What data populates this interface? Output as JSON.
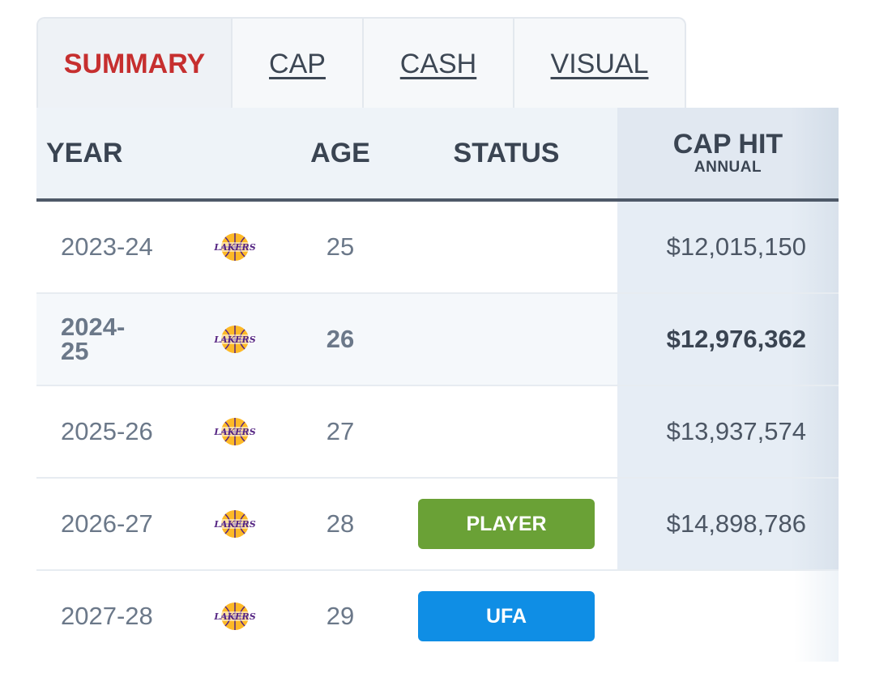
{
  "tabs": [
    {
      "label": "SUMMARY",
      "active": true
    },
    {
      "label": "CAP",
      "active": false
    },
    {
      "label": "CASH",
      "active": false
    },
    {
      "label": "VISUAL",
      "active": false
    }
  ],
  "table": {
    "headers": {
      "year": "YEAR",
      "age": "AGE",
      "status": "STATUS",
      "cap_hit": "CAP HIT",
      "cap_hit_sub": "ANNUAL"
    },
    "rows": [
      {
        "year": "2023-24",
        "team_logo": "lakers-logo",
        "age": "25",
        "status": "",
        "cap_hit": "$12,015,150"
      },
      {
        "year": "2024-25",
        "team_logo": "lakers-logo",
        "age": "26",
        "status": "",
        "cap_hit": "$12,976,362",
        "current": true
      },
      {
        "year": "2025-26",
        "team_logo": "lakers-logo",
        "age": "27",
        "status": "",
        "cap_hit": "$13,937,574"
      },
      {
        "year": "2026-27",
        "team_logo": "lakers-logo",
        "age": "28",
        "status": "PLAYER",
        "cap_hit": "$14,898,786"
      },
      {
        "year": "2027-28",
        "team_logo": "lakers-logo",
        "age": "29",
        "status": "UFA",
        "cap_hit": ""
      }
    ]
  },
  "colors": {
    "active_tab": "#c62f2f",
    "player_option": "#6aa136",
    "ufa": "#0f8ee5",
    "lakers_purple": "#552583",
    "lakers_gold": "#fdb927"
  }
}
